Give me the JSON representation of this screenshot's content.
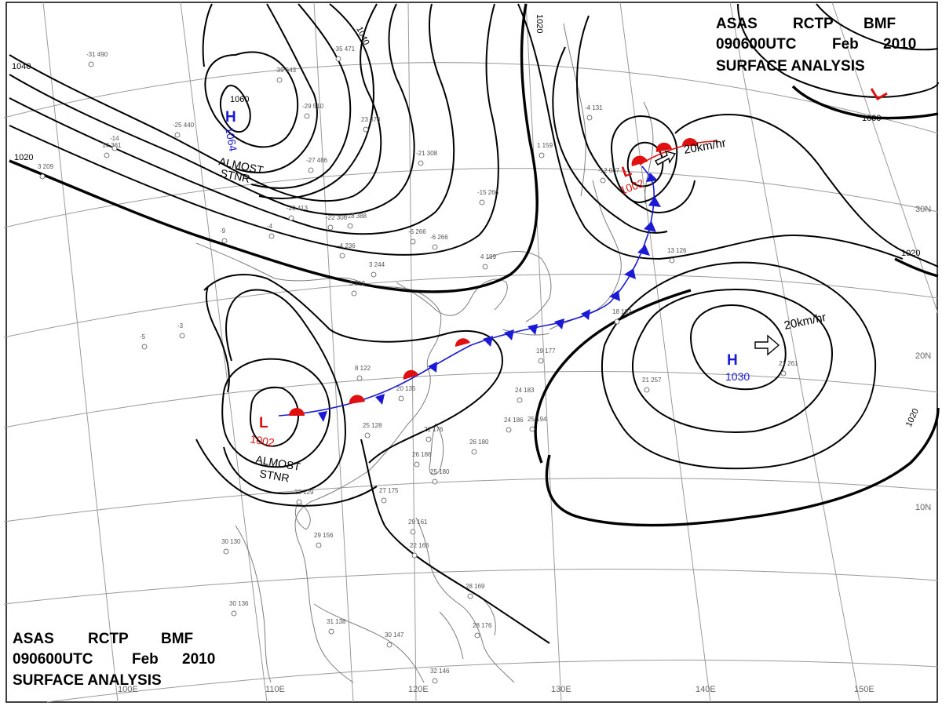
{
  "header_top_right": {
    "line1": [
      "ASAS",
      "RCTP",
      "BMF"
    ],
    "line2": [
      "090600UTC",
      "Feb",
      "2010"
    ],
    "line3": "SURFACE ANALYSIS"
  },
  "header_bottom_left": {
    "line1": [
      "ASAS",
      "RCTP",
      "BMF"
    ],
    "line2": [
      "090600UTC",
      "Feb",
      "2010"
    ],
    "line3": "SURFACE ANALYSIS"
  },
  "colors": {
    "high": "#1a1ad6",
    "low": "#e01010",
    "cold_front": "#1a1ad6",
    "warm_front": "#e01010",
    "isobar": "#000000"
  },
  "longitude_labels": [
    "100E",
    "110E",
    "120E",
    "130E",
    "140E",
    "150E"
  ],
  "latitude_labels": [
    "30N",
    "20N",
    "10N"
  ],
  "isobar_labels": [
    "1040",
    "1040",
    "1020",
    "1020",
    "1060",
    "1000",
    "1020",
    "1020"
  ],
  "pressure_centers": [
    {
      "id": "high-mongolia",
      "type": "H",
      "value": "1064",
      "note": [
        "ALMOST",
        "STNR"
      ]
    },
    {
      "id": "low-south-china",
      "type": "L",
      "value": "1002",
      "note": [
        "ALMOST",
        "STNR"
      ]
    },
    {
      "id": "low-japan",
      "type": "L",
      "value": "1002",
      "motion": "20km/hr"
    },
    {
      "id": "high-pacific",
      "type": "H",
      "value": "1030",
      "motion": "20km/hr"
    },
    {
      "id": "low-northeast",
      "type": "L",
      "value": ""
    }
  ],
  "stations": [
    "-31 490",
    "14 361",
    "3 209",
    "-25 440",
    "-39 543",
    "-35 471",
    "-29 510",
    "-27 486",
    "23 370",
    "-21 308",
    "-22 306",
    "-20 413",
    "-18 388",
    "-15 266",
    "-6 266",
    "-6 266",
    "-4 236",
    "3 244",
    "3 212",
    "4 199",
    "8 122",
    "20 135",
    "25 128",
    "21 176",
    "24 183",
    "24 186",
    "25 194",
    "26 186",
    "25 180",
    "27 175",
    "23 129",
    "29 156",
    "30 130",
    "30 136",
    "31 138",
    "30 147",
    "32 146",
    "29 161",
    "22 166",
    "28 169",
    "28 176",
    "26 180",
    "21 257",
    "21 261",
    "13 126",
    "18 192",
    "19 177",
    "-3",
    "-5",
    "-14",
    "-9",
    "-4",
    "1 159",
    "-12 037",
    "-4 131"
  ]
}
